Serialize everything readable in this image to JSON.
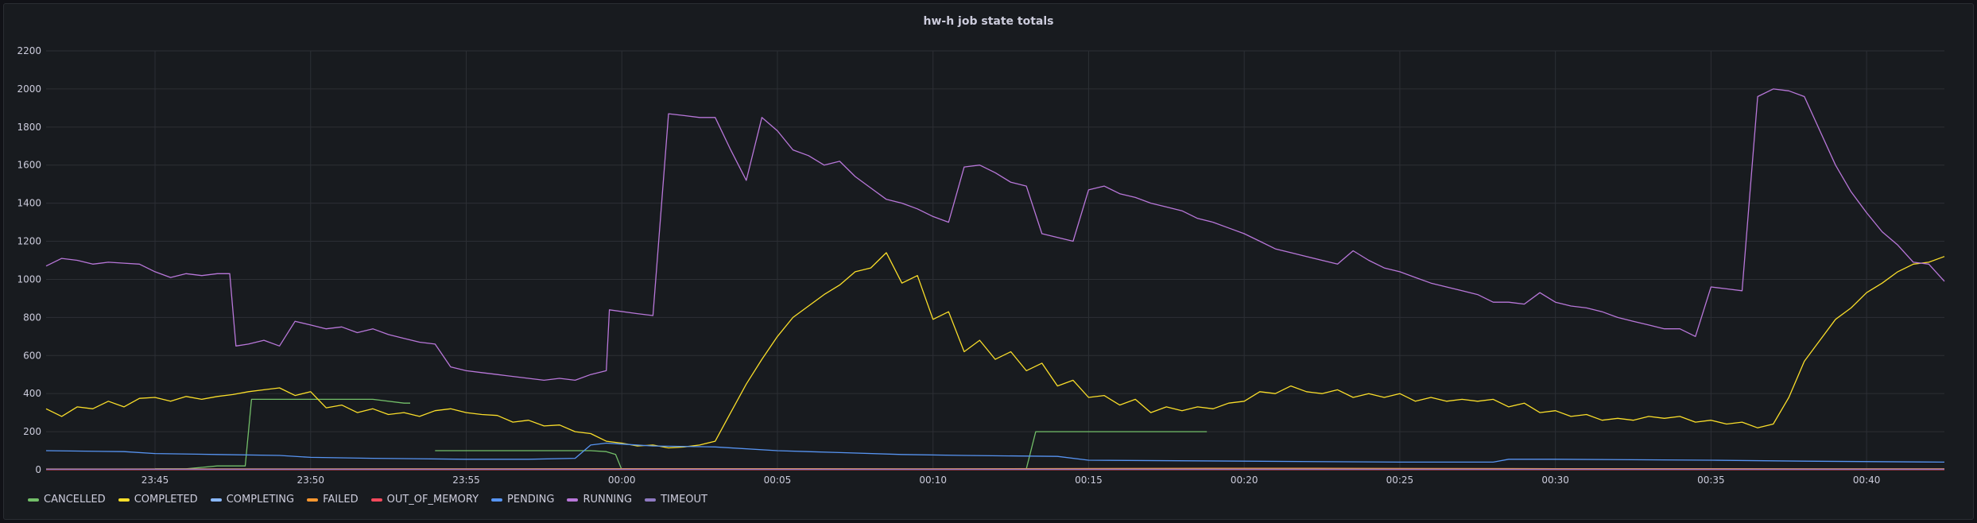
{
  "panel": {
    "title": "hw-h job state totals"
  },
  "chart_data": {
    "type": "line",
    "title": "hw-h job state totals",
    "ylim": [
      0,
      2200
    ],
    "yticks": [
      0,
      200,
      400,
      600,
      800,
      1000,
      1200,
      1400,
      1600,
      1800,
      2000,
      2200
    ],
    "x_range_minutes": [
      -18.5,
      42.5
    ],
    "xticks": [
      {
        "t": -15,
        "label": "23:45"
      },
      {
        "t": -10,
        "label": "23:50"
      },
      {
        "t": -5,
        "label": "23:55"
      },
      {
        "t": 0,
        "label": "00:00"
      },
      {
        "t": 5,
        "label": "00:05"
      },
      {
        "t": 10,
        "label": "00:10"
      },
      {
        "t": 15,
        "label": "00:15"
      },
      {
        "t": 20,
        "label": "00:20"
      },
      {
        "t": 25,
        "label": "00:25"
      },
      {
        "t": 30,
        "label": "00:30"
      },
      {
        "t": 35,
        "label": "00:35"
      },
      {
        "t": 40,
        "label": "00:40"
      }
    ],
    "grid": true,
    "legend": "bottom-left",
    "series": [
      {
        "name": "CANCELLED",
        "color": "#73bf69",
        "points": [
          [
            -15,
            5
          ],
          [
            -14,
            5
          ],
          [
            -13,
            20
          ],
          [
            -12.1,
            20
          ],
          [
            -11.9,
            370
          ],
          [
            -8,
            370
          ],
          [
            -7,
            350
          ],
          [
            -6.8,
            350
          ],
          null,
          [
            -6,
            100
          ],
          [
            -1,
            100
          ],
          [
            -0.5,
            95
          ],
          [
            -0.2,
            80
          ],
          [
            0,
            0
          ],
          null,
          [
            13,
            5
          ],
          [
            13.3,
            200
          ],
          [
            18.8,
            200
          ]
        ]
      },
      {
        "name": "COMPLETED",
        "color": "#fade2a",
        "points": [
          [
            -18.5,
            320
          ],
          [
            -18,
            280
          ],
          [
            -17.5,
            330
          ],
          [
            -17,
            320
          ],
          [
            -16.5,
            360
          ],
          [
            -16,
            330
          ],
          [
            -15.5,
            375
          ],
          [
            -15,
            380
          ],
          [
            -14.5,
            360
          ],
          [
            -14,
            385
          ],
          [
            -13.5,
            370
          ],
          [
            -13,
            385
          ],
          [
            -12.5,
            395
          ],
          [
            -12,
            410
          ],
          [
            -11.5,
            420
          ],
          [
            -11,
            430
          ],
          [
            -10.5,
            390
          ],
          [
            -10,
            410
          ],
          [
            -9.5,
            325
          ],
          [
            -9,
            340
          ],
          [
            -8.5,
            300
          ],
          [
            -8,
            320
          ],
          [
            -7.5,
            290
          ],
          [
            -7,
            300
          ],
          [
            -6.5,
            280
          ],
          [
            -6,
            310
          ],
          [
            -5.5,
            320
          ],
          [
            -5,
            300
          ],
          [
            -4.5,
            290
          ],
          [
            -4,
            285
          ],
          [
            -3.5,
            250
          ],
          [
            -3,
            260
          ],
          [
            -2.5,
            230
          ],
          [
            -2,
            235
          ],
          [
            -1.5,
            200
          ],
          [
            -1,
            190
          ],
          [
            -0.5,
            150
          ],
          [
            0,
            140
          ],
          [
            0.5,
            125
          ],
          [
            1,
            130
          ],
          [
            1.5,
            115
          ],
          [
            2,
            120
          ],
          [
            2.5,
            130
          ],
          [
            3,
            150
          ],
          [
            3.5,
            300
          ],
          [
            4,
            450
          ],
          [
            4.5,
            580
          ],
          [
            5,
            700
          ],
          [
            5.5,
            800
          ],
          [
            6,
            860
          ],
          [
            6.5,
            920
          ],
          [
            7,
            970
          ],
          [
            7.5,
            1040
          ],
          [
            8,
            1060
          ],
          [
            8.5,
            1140
          ],
          [
            9,
            980
          ],
          [
            9.5,
            1020
          ],
          [
            10,
            790
          ],
          [
            10.5,
            830
          ],
          [
            11,
            620
          ],
          [
            11.5,
            680
          ],
          [
            12,
            580
          ],
          [
            12.5,
            620
          ],
          [
            13,
            520
          ],
          [
            13.5,
            560
          ],
          [
            14,
            440
          ],
          [
            14.5,
            470
          ],
          [
            15,
            380
          ],
          [
            15.5,
            390
          ],
          [
            16,
            340
          ],
          [
            16.5,
            370
          ],
          [
            17,
            300
          ],
          [
            17.5,
            330
          ],
          [
            18,
            310
          ],
          [
            18.5,
            330
          ],
          [
            19,
            320
          ],
          [
            19.5,
            350
          ],
          [
            20,
            360
          ],
          [
            20.5,
            410
          ],
          [
            21,
            400
          ],
          [
            21.5,
            440
          ],
          [
            22,
            410
          ],
          [
            22.5,
            400
          ],
          [
            23,
            420
          ],
          [
            23.5,
            380
          ],
          [
            24,
            400
          ],
          [
            24.5,
            380
          ],
          [
            25,
            400
          ],
          [
            25.5,
            360
          ],
          [
            26,
            380
          ],
          [
            26.5,
            360
          ],
          [
            27,
            370
          ],
          [
            27.5,
            360
          ],
          [
            28,
            370
          ],
          [
            28.5,
            330
          ],
          [
            29,
            350
          ],
          [
            29.5,
            300
          ],
          [
            30,
            310
          ],
          [
            30.5,
            280
          ],
          [
            31,
            290
          ],
          [
            31.5,
            260
          ],
          [
            32,
            270
          ],
          [
            32.5,
            260
          ],
          [
            33,
            280
          ],
          [
            33.5,
            270
          ],
          [
            34,
            280
          ],
          [
            34.5,
            250
          ],
          [
            35,
            260
          ],
          [
            35.5,
            240
          ],
          [
            36,
            250
          ],
          [
            36.5,
            220
          ],
          [
            37,
            240
          ],
          [
            37.5,
            380
          ],
          [
            38,
            570
          ],
          [
            38.5,
            680
          ],
          [
            39,
            790
          ],
          [
            39.5,
            850
          ],
          [
            40,
            930
          ],
          [
            40.5,
            980
          ],
          [
            41,
            1040
          ],
          [
            41.5,
            1080
          ],
          [
            42,
            1090
          ],
          [
            42.5,
            1120
          ]
        ]
      },
      {
        "name": "COMPLETING",
        "color": "#8ab8ff",
        "points": [
          [
            -18.5,
            2
          ],
          [
            42.5,
            2
          ]
        ]
      },
      {
        "name": "FAILED",
        "color": "#ff9830",
        "points": [
          [
            -18.5,
            4
          ],
          [
            5,
            6
          ],
          [
            10,
            5
          ],
          [
            20,
            8
          ],
          [
            30,
            6
          ],
          [
            42.5,
            5
          ]
        ]
      },
      {
        "name": "OUT_OF_MEMORY",
        "color": "#f2495c",
        "points": [
          [
            -18.5,
            1
          ],
          [
            42.5,
            1
          ]
        ]
      },
      {
        "name": "PENDING",
        "color": "#5794f2",
        "points": [
          [
            -18.5,
            100
          ],
          [
            -16,
            95
          ],
          [
            -15,
            85
          ],
          [
            -13,
            80
          ],
          [
            -11,
            75
          ],
          [
            -10,
            65
          ],
          [
            -8,
            60
          ],
          [
            -5,
            55
          ],
          [
            -3,
            55
          ],
          [
            -1.5,
            60
          ],
          [
            -1,
            130
          ],
          [
            -0.5,
            140
          ],
          [
            0,
            135
          ],
          [
            1,
            125
          ],
          [
            3,
            120
          ],
          [
            5,
            100
          ],
          [
            7,
            90
          ],
          [
            9,
            80
          ],
          [
            11,
            75
          ],
          [
            14,
            70
          ],
          [
            15,
            50
          ],
          [
            20,
            45
          ],
          [
            25,
            40
          ],
          [
            28,
            40
          ],
          [
            28.5,
            55
          ],
          [
            30,
            55
          ],
          [
            35,
            50
          ],
          [
            38,
            45
          ],
          [
            42.5,
            40
          ]
        ]
      },
      {
        "name": "RUNNING",
        "color": "#b877d9",
        "points": [
          [
            -18.5,
            1070
          ],
          [
            -18,
            1110
          ],
          [
            -17.5,
            1100
          ],
          [
            -17,
            1080
          ],
          [
            -16.5,
            1090
          ],
          [
            -16,
            1085
          ],
          [
            -15.5,
            1080
          ],
          [
            -15,
            1040
          ],
          [
            -14.5,
            1010
          ],
          [
            -14,
            1030
          ],
          [
            -13.5,
            1020
          ],
          [
            -13,
            1030
          ],
          [
            -12.6,
            1030
          ],
          [
            -12.4,
            650
          ],
          [
            -12,
            660
          ],
          [
            -11.5,
            680
          ],
          [
            -11,
            650
          ],
          [
            -10.5,
            780
          ],
          [
            -10,
            760
          ],
          [
            -9.5,
            740
          ],
          [
            -9,
            750
          ],
          [
            -8.5,
            720
          ],
          [
            -8,
            740
          ],
          [
            -7.5,
            710
          ],
          [
            -7,
            690
          ],
          [
            -6.5,
            670
          ],
          [
            -6,
            660
          ],
          [
            -5.5,
            540
          ],
          [
            -5,
            520
          ],
          [
            -4.5,
            510
          ],
          [
            -4,
            500
          ],
          [
            -3.5,
            490
          ],
          [
            -3,
            480
          ],
          [
            -2.5,
            470
          ],
          [
            -2,
            480
          ],
          [
            -1.5,
            470
          ],
          [
            -1,
            500
          ],
          [
            -0.5,
            520
          ],
          [
            -0.4,
            840
          ],
          [
            0.5,
            820
          ],
          [
            1,
            810
          ],
          [
            1.5,
            1870
          ],
          [
            2,
            1860
          ],
          [
            2.5,
            1850
          ],
          [
            3,
            1850
          ],
          [
            3.5,
            1680
          ],
          [
            4,
            1520
          ],
          [
            4.5,
            1850
          ],
          [
            5,
            1780
          ],
          [
            5.5,
            1680
          ],
          [
            6,
            1650
          ],
          [
            6.5,
            1600
          ],
          [
            7,
            1620
          ],
          [
            7.5,
            1540
          ],
          [
            8,
            1480
          ],
          [
            8.5,
            1420
          ],
          [
            9,
            1400
          ],
          [
            9.5,
            1370
          ],
          [
            10,
            1330
          ],
          [
            10.5,
            1300
          ],
          [
            11,
            1590
          ],
          [
            11.5,
            1600
          ],
          [
            12,
            1560
          ],
          [
            12.5,
            1510
          ],
          [
            13,
            1490
          ],
          [
            13.5,
            1240
          ],
          [
            14,
            1220
          ],
          [
            14.5,
            1200
          ],
          [
            15,
            1470
          ],
          [
            15.5,
            1490
          ],
          [
            16,
            1450
          ],
          [
            16.5,
            1430
          ],
          [
            17,
            1400
          ],
          [
            17.5,
            1380
          ],
          [
            18,
            1360
          ],
          [
            18.5,
            1320
          ],
          [
            19,
            1300
          ],
          [
            19.5,
            1270
          ],
          [
            20,
            1240
          ],
          [
            20.5,
            1200
          ],
          [
            21,
            1160
          ],
          [
            21.5,
            1140
          ],
          [
            22,
            1120
          ],
          [
            22.5,
            1100
          ],
          [
            23,
            1080
          ],
          [
            23.5,
            1150
          ],
          [
            24,
            1100
          ],
          [
            24.5,
            1060
          ],
          [
            25,
            1040
          ],
          [
            25.5,
            1010
          ],
          [
            26,
            980
          ],
          [
            26.5,
            960
          ],
          [
            27,
            940
          ],
          [
            27.5,
            920
          ],
          [
            28,
            880
          ],
          [
            28.5,
            880
          ],
          [
            29,
            870
          ],
          [
            29.5,
            930
          ],
          [
            30,
            880
          ],
          [
            30.5,
            860
          ],
          [
            31,
            850
          ],
          [
            31.5,
            830
          ],
          [
            32,
            800
          ],
          [
            32.5,
            780
          ],
          [
            33,
            760
          ],
          [
            33.5,
            740
          ],
          [
            34,
            740
          ],
          [
            34.5,
            700
          ],
          [
            35,
            960
          ],
          [
            35.5,
            950
          ],
          [
            36,
            940
          ],
          [
            36.5,
            1960
          ],
          [
            37,
            2000
          ],
          [
            37.5,
            1990
          ],
          [
            38,
            1960
          ],
          [
            38.5,
            1780
          ],
          [
            39,
            1600
          ],
          [
            39.5,
            1460
          ],
          [
            40,
            1350
          ],
          [
            40.5,
            1250
          ],
          [
            41,
            1180
          ],
          [
            41.5,
            1090
          ],
          [
            42,
            1080
          ],
          [
            42.5,
            990
          ]
        ]
      },
      {
        "name": "TIMEOUT",
        "color": "#8f7ac2",
        "points": [
          [
            -18.5,
            3
          ],
          [
            42.5,
            3
          ]
        ]
      }
    ]
  }
}
